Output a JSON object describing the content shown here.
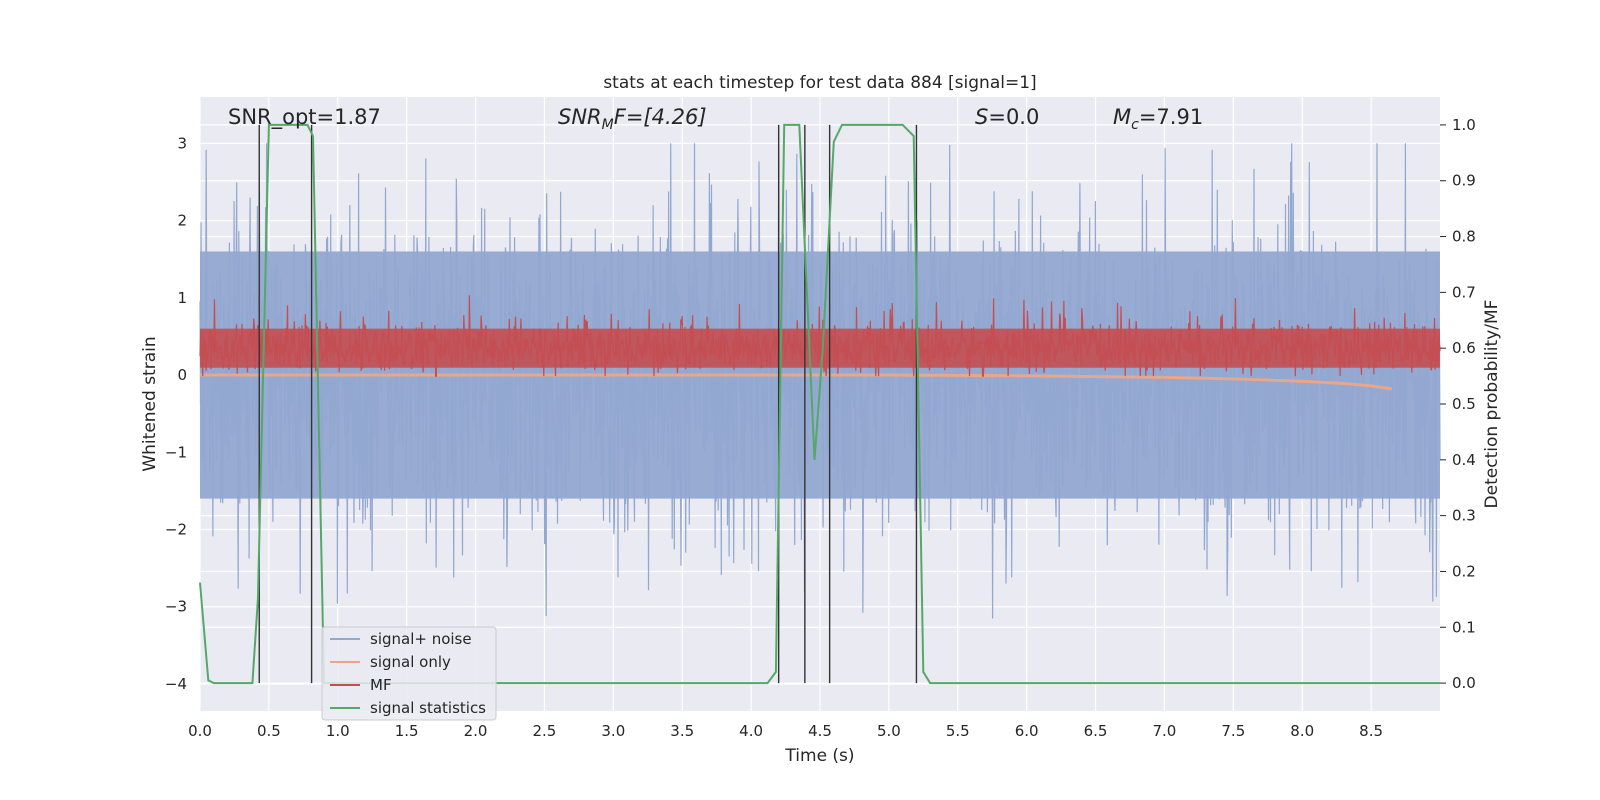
{
  "chart_data": {
    "type": "line",
    "title": "stats at each timestep for test data 884 [signal=1]",
    "xlabel": "Time (s)",
    "ylabel_left": "Whitened strain",
    "ylabel_right": "Detection probability/MF",
    "xlim": [
      0.0,
      9.0
    ],
    "ylim_left": [
      -4.35,
      3.6
    ],
    "ylim_right": [
      -0.05,
      1.05
    ],
    "grid": true,
    "legend_position": "lower-left",
    "x_ticks": [
      "0.0",
      "0.5",
      "1.0",
      "1.5",
      "2.0",
      "2.5",
      "3.0",
      "3.5",
      "4.0",
      "4.5",
      "5.0",
      "5.5",
      "6.0",
      "6.5",
      "7.0",
      "7.5",
      "8.0",
      "8.5"
    ],
    "y_ticks_left": [
      "3",
      "2",
      "1",
      "0",
      "−1",
      "−2",
      "−3",
      "−4"
    ],
    "y_ticks_right": [
      "1.0",
      "0.9",
      "0.8",
      "0.7",
      "0.6",
      "0.5",
      "0.4",
      "0.3",
      "0.2",
      "0.1",
      "0.0"
    ],
    "annotations": {
      "snr_opt": "SNR_opt=1.87",
      "snr_mf_base": "SNR",
      "snr_mf_sub": "M",
      "snr_mf_rest": "F=[4.26]",
      "s_value": "=0.0",
      "s_symbol": "S",
      "mc_symbol": "M",
      "mc_sub": "c",
      "mc_value": "=7.91"
    },
    "series": [
      {
        "name": "signal+ noise",
        "color": "#92a8d1",
        "kind": "noise-band",
        "axis": "left",
        "x_range": [
          0.0,
          9.0
        ],
        "typical_range": [
          -1.6,
          1.6
        ],
        "extreme_range": [
          -3.45,
          3.0
        ]
      },
      {
        "name": "signal only",
        "color": "#e8a68a",
        "axis": "left",
        "x": [
          0.0,
          1.0,
          2.0,
          3.0,
          4.0,
          5.0,
          6.0,
          6.5,
          7.0,
          7.5,
          8.0,
          8.3,
          8.5,
          8.65
        ],
        "y": [
          0.0,
          0.0,
          0.0,
          0.0,
          0.0,
          0.0,
          -0.01,
          -0.02,
          -0.03,
          -0.05,
          -0.08,
          -0.11,
          -0.14,
          -0.18
        ]
      },
      {
        "name": "MF",
        "color": "#c44e52",
        "kind": "noise-band",
        "axis": "right",
        "x_range": [
          0.0,
          9.0
        ],
        "center": 0.6,
        "typical_range": [
          0.555,
          0.655
        ],
        "extreme_range": [
          0.55,
          0.7
        ]
      },
      {
        "name": "signal statistics",
        "color": "#55a868",
        "axis": "right",
        "x": [
          0.0,
          0.06,
          0.1,
          0.38,
          0.42,
          0.5,
          0.78,
          0.82,
          0.9,
          4.12,
          4.18,
          4.24,
          4.35,
          4.46,
          4.52,
          4.6,
          4.66,
          5.1,
          5.18,
          5.25,
          5.3,
          9.0
        ],
        "y": [
          0.18,
          0.005,
          0.0,
          0.0,
          0.15,
          1.0,
          1.0,
          0.98,
          0.0,
          0.0,
          0.02,
          1.0,
          1.0,
          0.4,
          0.6,
          0.97,
          1.0,
          1.0,
          0.98,
          0.02,
          0.0,
          0.0
        ]
      }
    ],
    "vertical_markers": {
      "color": "#333333",
      "x": [
        0.43,
        0.81,
        4.2,
        4.39,
        4.57,
        5.2
      ]
    }
  }
}
